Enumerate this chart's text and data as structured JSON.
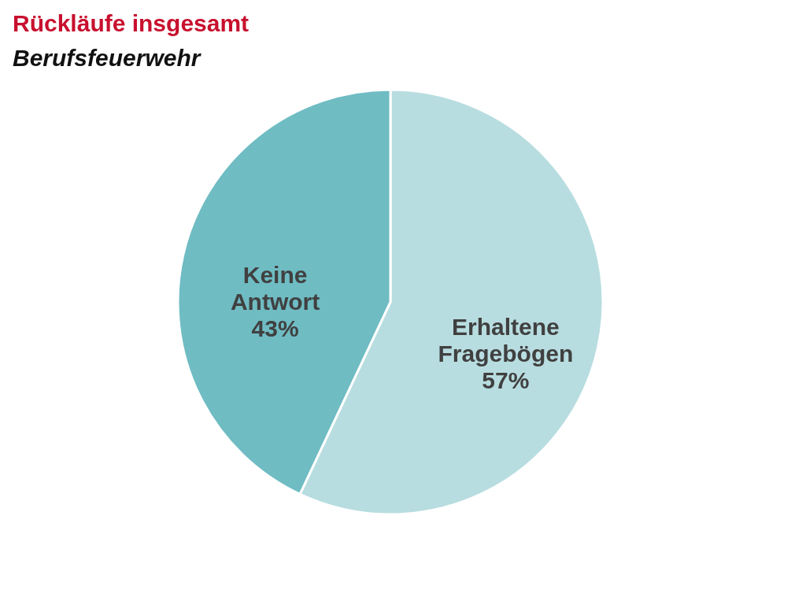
{
  "chart_data": {
    "type": "pie",
    "title": "Rückläufe insgesamt",
    "subtitle": "Berufsfeuerwehr",
    "categories": [
      "Erhaltene Fragebögen",
      "Keine Antwort"
    ],
    "values": [
      57,
      43
    ],
    "colors": [
      "#b8dde0",
      "#6fbcc3"
    ],
    "value_labels": [
      "57%",
      "43%"
    ]
  }
}
